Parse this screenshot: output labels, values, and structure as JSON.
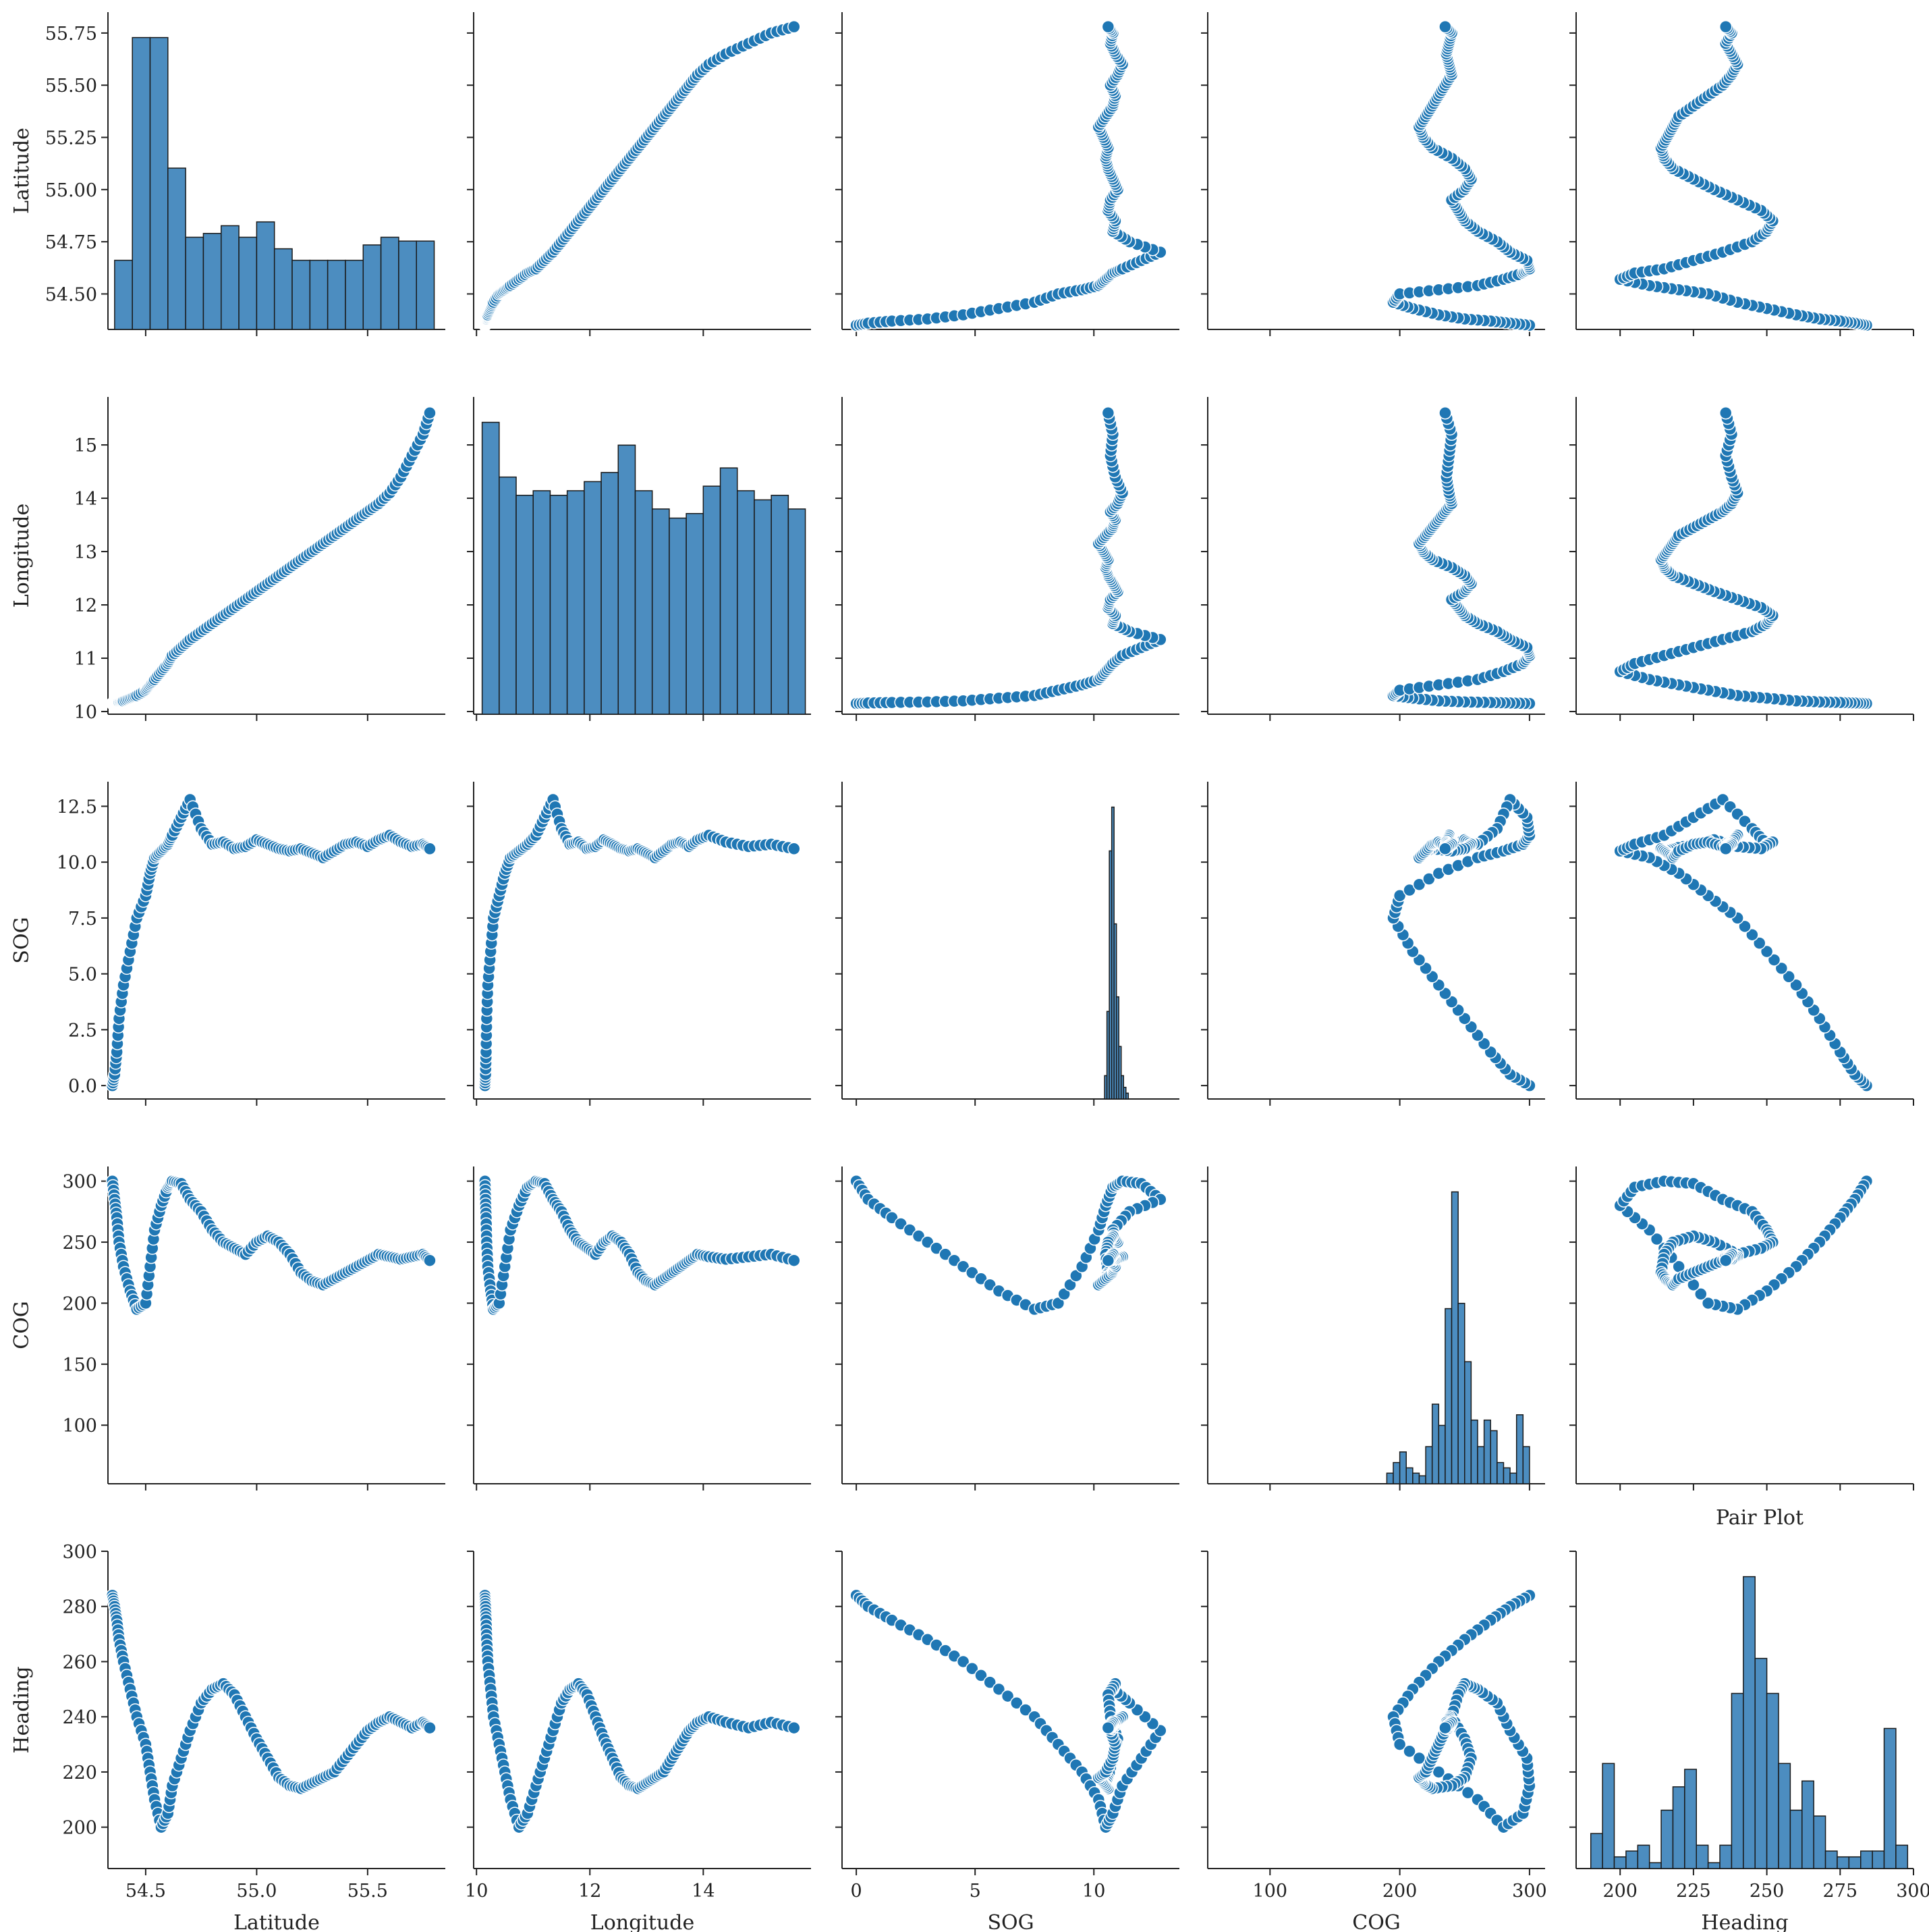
{
  "figure": {
    "title": "Pair Plot",
    "variables": [
      "Latitude",
      "Longitude",
      "SOG",
      "COG",
      "Heading"
    ]
  },
  "chart_data": {
    "type": "scatter",
    "title": "Pair Plot",
    "marker_color": "#1f77b4",
    "bar_color": "#4c8dc0",
    "bar_edge": "#1a1a1a",
    "variables": [
      {
        "name": "Latitude",
        "lim": [
          54.33,
          55.85
        ],
        "ticks": [
          54.5,
          54.75,
          55.0,
          55.25,
          55.5,
          55.75
        ],
        "tick_labels_y": [
          "54.50",
          "54.75",
          "55.00",
          "55.25",
          "55.50",
          "55.75"
        ],
        "tick_labels_x": [
          "54.5",
          "55.0",
          "55.5"
        ],
        "ticks_x": [
          54.5,
          55.0,
          55.5
        ]
      },
      {
        "name": "Longitude",
        "lim": [
          9.95,
          15.9
        ],
        "ticks": [
          10,
          11,
          12,
          13,
          14,
          15
        ],
        "tick_labels_y": [
          "10",
          "11",
          "12",
          "13",
          "14",
          "15"
        ],
        "tick_labels_x": [
          "10",
          "12",
          "14"
        ],
        "ticks_x": [
          10,
          12,
          14
        ]
      },
      {
        "name": "SOG",
        "lim": [
          -0.6,
          13.6
        ],
        "ticks": [
          0.0,
          2.5,
          5.0,
          7.5,
          10.0,
          12.5
        ],
        "tick_labels_y": [
          "0.0",
          "2.5",
          "5.0",
          "7.5",
          "10.0",
          "12.5"
        ],
        "tick_labels_x": [
          "0",
          "5",
          "10"
        ],
        "ticks_x": [
          0,
          5,
          10
        ]
      },
      {
        "name": "COG",
        "lim": [
          52,
          312
        ],
        "ticks": [
          100,
          150,
          200,
          250,
          300
        ],
        "tick_labels_y": [
          "100",
          "150",
          "200",
          "250",
          "300"
        ],
        "tick_labels_x": [
          "100",
          "200",
          "300"
        ],
        "ticks_x": [
          100,
          200,
          300
        ]
      },
      {
        "name": "Heading",
        "lim": [
          185,
          300
        ],
        "ticks": [
          200,
          220,
          240,
          260,
          280,
          300
        ],
        "tick_labels_y": [
          "200",
          "220",
          "240",
          "260",
          "280",
          "300"
        ],
        "tick_labels_x": [
          "200",
          "225",
          "250",
          "275",
          "300"
        ],
        "ticks_x": [
          200,
          225,
          250,
          275,
          300
        ]
      }
    ],
    "histograms": {
      "Latitude": {
        "edges": [
          54.36,
          54.44,
          54.52,
          54.6,
          54.68,
          54.76,
          54.84,
          54.92,
          55.0,
          55.08,
          55.16,
          55.24,
          55.32,
          55.4,
          55.48,
          55.56,
          55.64,
          55.72,
          55.8
        ],
        "counts": [
          18,
          76,
          76,
          42,
          24,
          25,
          27,
          24,
          28,
          21,
          18,
          18,
          18,
          18,
          22,
          24,
          23,
          23
        ]
      },
      "Longitude": {
        "edges": [
          10.1,
          10.4,
          10.7,
          11.0,
          11.3,
          11.6,
          11.9,
          12.2,
          12.5,
          12.8,
          13.1,
          13.4,
          13.7,
          14.0,
          14.3,
          14.6,
          14.9,
          15.2,
          15.5,
          15.8
        ],
        "counts": [
          64,
          52,
          48,
          49,
          48,
          49,
          51,
          53,
          59,
          49,
          45,
          43,
          44,
          50,
          54,
          49,
          47,
          48,
          45
        ]
      },
      "SOG": {
        "edges": [
          10.45,
          10.55,
          10.65,
          10.75,
          10.85,
          10.95,
          11.05,
          11.15,
          11.25,
          11.35,
          11.45
        ],
        "counts": [
          8,
          30,
          85,
          100,
          60,
          35,
          18,
          8,
          4,
          2
        ]
      },
      "COG": {
        "edges": [
          190,
          195,
          200,
          205,
          210,
          215,
          220,
          225,
          230,
          235,
          240,
          245,
          250,
          255,
          260,
          265,
          270,
          275,
          280,
          285,
          290,
          295,
          300
        ],
        "counts": [
          4,
          8,
          12,
          6,
          4,
          3,
          14,
          30,
          22,
          66,
          110,
          68,
          46,
          24,
          14,
          24,
          20,
          8,
          6,
          4,
          26,
          14
        ]
      },
      "Heading": {
        "edges": [
          190,
          194,
          198,
          202,
          206,
          210,
          214,
          218,
          222,
          226,
          230,
          234,
          238,
          242,
          246,
          250,
          254,
          258,
          262,
          266,
          270,
          274,
          278,
          282,
          286,
          290,
          294,
          298
        ],
        "counts": [
          6,
          18,
          2,
          3,
          4,
          1,
          10,
          14,
          17,
          4,
          1,
          4,
          30,
          50,
          36,
          30,
          18,
          10,
          15,
          9,
          3,
          2,
          2,
          3,
          3,
          24,
          4
        ]
      }
    },
    "series": [
      {
        "name": "Longitude",
        "values_note": "paired with Latitude index",
        "latitude": [
          54.35,
          54.36,
          54.37,
          54.38,
          54.4,
          54.43,
          54.46,
          54.5,
          54.52,
          54.54,
          54.57,
          54.6,
          54.62,
          54.66,
          54.7,
          54.75,
          54.8,
          54.85,
          54.9,
          54.95,
          55.0,
          55.05,
          55.1,
          55.15,
          55.2,
          55.25,
          55.3,
          55.35,
          55.4,
          55.45,
          55.5,
          55.55,
          55.6,
          55.65,
          55.7,
          55.75,
          55.78
        ],
        "longitude": [
          10.15,
          10.16,
          10.17,
          10.18,
          10.2,
          10.25,
          10.3,
          10.4,
          10.5,
          10.6,
          10.75,
          10.9,
          11.05,
          11.2,
          11.35,
          11.5,
          11.65,
          11.8,
          11.95,
          12.1,
          12.25,
          12.4,
          12.55,
          12.7,
          12.85,
          13.0,
          13.15,
          13.3,
          13.45,
          13.6,
          13.75,
          13.9,
          14.1,
          14.4,
          14.8,
          15.2,
          15.6
        ],
        "sog": [
          0.0,
          0.5,
          1.5,
          3.0,
          4.5,
          6.0,
          7.5,
          8.5,
          9.5,
          10.2,
          10.5,
          10.8,
          11.2,
          12.0,
          12.8,
          11.5,
          10.8,
          10.9,
          10.6,
          10.7,
          11.0,
          10.8,
          10.6,
          10.5,
          10.6,
          10.4,
          10.2,
          10.5,
          10.8,
          10.9,
          10.7,
          11.0,
          11.2,
          10.9,
          10.7,
          10.8,
          10.6
        ],
        "cog": [
          300,
          285,
          270,
          250,
          230,
          210,
          195,
          200,
          230,
          260,
          280,
          295,
          300,
          298,
          285,
          275,
          260,
          250,
          245,
          240,
          250,
          255,
          250,
          240,
          225,
          218,
          215,
          220,
          225,
          230,
          235,
          240,
          238,
          236,
          238,
          240,
          235
        ],
        "heading": [
          284,
          280,
          275,
          268,
          260,
          250,
          240,
          230,
          220,
          210,
          200,
          205,
          215,
          225,
          235,
          245,
          250,
          252,
          248,
          240,
          232,
          225,
          218,
          215,
          214,
          216,
          218,
          220,
          225,
          230,
          235,
          238,
          240,
          238,
          236,
          238,
          236
        ]
      }
    ]
  }
}
